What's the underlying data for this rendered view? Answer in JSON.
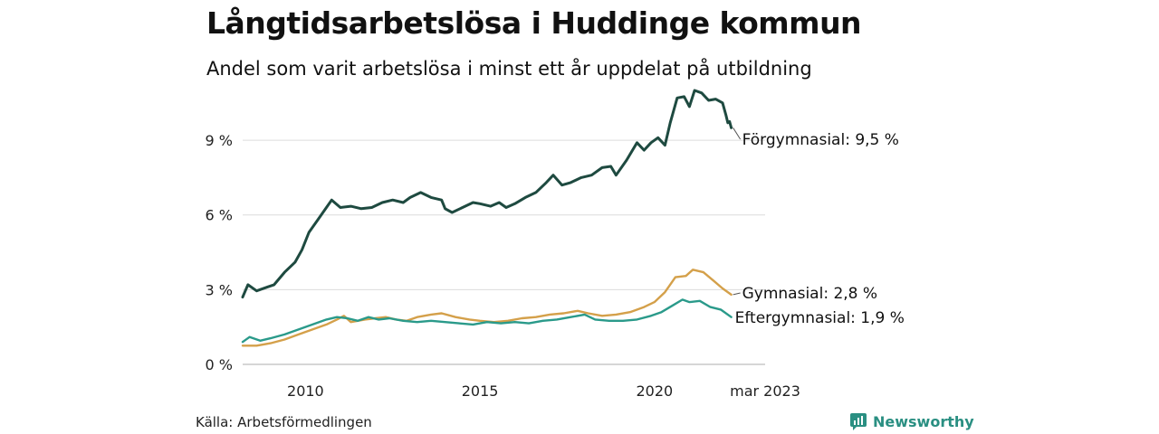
{
  "title": "Långtidsarbetslösa i Huddinge kommun",
  "subtitle": "Andel som varit arbetslösa i minst ett år uppdelat på utbildning",
  "source": "Källa: Arbetsförmedlingen",
  "brand": "Newsworthy",
  "chart_data": {
    "type": "line",
    "title": "Långtidsarbetslösa i Huddinge kommun",
    "subtitle": "Andel som varit arbetslösa i minst ett år uppdelat på utbildning",
    "xlabel": "",
    "ylabel": "",
    "xlim": [
      2008.2,
      2023.17
    ],
    "ylim": [
      0,
      11
    ],
    "y_ticks": [
      0,
      3,
      6,
      9
    ],
    "y_tick_labels": [
      "0 %",
      "3 %",
      "6 %",
      "9 %"
    ],
    "x_ticks": [
      2010,
      2015,
      2020,
      2023.17
    ],
    "x_tick_labels": [
      "2010",
      "2015",
      "2020",
      "mar 2023"
    ],
    "grid": true,
    "legend": "end-labels",
    "series": [
      {
        "name": "Förgymnasial",
        "end_label": "Förgymnasial: 9,5 %",
        "color": "#1e4a40",
        "points": [
          [
            2008.2,
            2.7
          ],
          [
            2008.35,
            3.2
          ],
          [
            2008.6,
            2.95
          ],
          [
            2008.9,
            3.1
          ],
          [
            2009.1,
            3.2
          ],
          [
            2009.4,
            3.7
          ],
          [
            2009.7,
            4.1
          ],
          [
            2009.9,
            4.6
          ],
          [
            2010.1,
            5.3
          ],
          [
            2010.35,
            5.8
          ],
          [
            2010.6,
            6.3
          ],
          [
            2010.75,
            6.6
          ],
          [
            2011.0,
            6.3
          ],
          [
            2011.3,
            6.35
          ],
          [
            2011.6,
            6.25
          ],
          [
            2011.9,
            6.3
          ],
          [
            2012.2,
            6.5
          ],
          [
            2012.5,
            6.6
          ],
          [
            2012.8,
            6.5
          ],
          [
            2013.0,
            6.7
          ],
          [
            2013.3,
            6.9
          ],
          [
            2013.6,
            6.7
          ],
          [
            2013.9,
            6.6
          ],
          [
            2014.0,
            6.25
          ],
          [
            2014.2,
            6.1
          ],
          [
            2014.5,
            6.3
          ],
          [
            2014.8,
            6.5
          ],
          [
            2015.0,
            6.45
          ],
          [
            2015.3,
            6.35
          ],
          [
            2015.55,
            6.5
          ],
          [
            2015.75,
            6.3
          ],
          [
            2016.0,
            6.45
          ],
          [
            2016.3,
            6.7
          ],
          [
            2016.6,
            6.9
          ],
          [
            2016.9,
            7.3
          ],
          [
            2017.1,
            7.6
          ],
          [
            2017.35,
            7.2
          ],
          [
            2017.6,
            7.3
          ],
          [
            2017.9,
            7.5
          ],
          [
            2018.2,
            7.6
          ],
          [
            2018.5,
            7.9
          ],
          [
            2018.75,
            7.95
          ],
          [
            2018.9,
            7.6
          ],
          [
            2019.2,
            8.2
          ],
          [
            2019.5,
            8.9
          ],
          [
            2019.7,
            8.6
          ],
          [
            2019.9,
            8.9
          ],
          [
            2020.1,
            9.1
          ],
          [
            2020.3,
            8.8
          ],
          [
            2020.45,
            9.7
          ],
          [
            2020.65,
            10.7
          ],
          [
            2020.85,
            10.75
          ],
          [
            2021.0,
            10.35
          ],
          [
            2021.15,
            11.0
          ],
          [
            2021.35,
            10.9
          ],
          [
            2021.55,
            10.6
          ],
          [
            2021.75,
            10.65
          ],
          [
            2021.95,
            10.5
          ],
          [
            2022.05,
            10.0
          ],
          [
            2022.1,
            9.7
          ],
          [
            2022.15,
            9.75
          ],
          [
            2022.2,
            9.5
          ]
        ]
      },
      {
        "name": "Gymnasial",
        "end_label": "Gymnasial: 2,8 %",
        "color": "#d4a04a",
        "points": [
          [
            2008.2,
            0.75
          ],
          [
            2008.6,
            0.75
          ],
          [
            2009.0,
            0.85
          ],
          [
            2009.4,
            1.0
          ],
          [
            2009.8,
            1.2
          ],
          [
            2010.2,
            1.4
          ],
          [
            2010.6,
            1.6
          ],
          [
            2010.9,
            1.8
          ],
          [
            2011.1,
            1.95
          ],
          [
            2011.3,
            1.7
          ],
          [
            2011.7,
            1.8
          ],
          [
            2012.0,
            1.85
          ],
          [
            2012.3,
            1.9
          ],
          [
            2012.6,
            1.8
          ],
          [
            2012.9,
            1.75
          ],
          [
            2013.2,
            1.9
          ],
          [
            2013.6,
            2.0
          ],
          [
            2013.9,
            2.05
          ],
          [
            2014.3,
            1.9
          ],
          [
            2014.7,
            1.8
          ],
          [
            2015.0,
            1.75
          ],
          [
            2015.4,
            1.7
          ],
          [
            2015.8,
            1.75
          ],
          [
            2016.2,
            1.85
          ],
          [
            2016.6,
            1.9
          ],
          [
            2017.0,
            2.0
          ],
          [
            2017.4,
            2.05
          ],
          [
            2017.8,
            2.15
          ],
          [
            2018.1,
            2.05
          ],
          [
            2018.5,
            1.95
          ],
          [
            2018.9,
            2.0
          ],
          [
            2019.3,
            2.1
          ],
          [
            2019.7,
            2.3
          ],
          [
            2020.0,
            2.5
          ],
          [
            2020.3,
            2.9
          ],
          [
            2020.6,
            3.5
          ],
          [
            2020.9,
            3.55
          ],
          [
            2021.1,
            3.8
          ],
          [
            2021.4,
            3.7
          ],
          [
            2021.7,
            3.35
          ],
          [
            2021.95,
            3.05
          ],
          [
            2022.2,
            2.8
          ]
        ]
      },
      {
        "name": "Eftergymnasial",
        "end_label": "Eftergymnasial: 1,9 %",
        "color": "#2a9a8a",
        "points": [
          [
            2008.2,
            0.9
          ],
          [
            2008.4,
            1.1
          ],
          [
            2008.7,
            0.95
          ],
          [
            2009.0,
            1.05
          ],
          [
            2009.4,
            1.2
          ],
          [
            2009.8,
            1.4
          ],
          [
            2010.2,
            1.6
          ],
          [
            2010.6,
            1.8
          ],
          [
            2010.9,
            1.9
          ],
          [
            2011.2,
            1.85
          ],
          [
            2011.5,
            1.75
          ],
          [
            2011.8,
            1.9
          ],
          [
            2012.1,
            1.8
          ],
          [
            2012.4,
            1.85
          ],
          [
            2012.8,
            1.75
          ],
          [
            2013.2,
            1.7
          ],
          [
            2013.6,
            1.75
          ],
          [
            2014.0,
            1.7
          ],
          [
            2014.4,
            1.65
          ],
          [
            2014.8,
            1.6
          ],
          [
            2015.2,
            1.7
          ],
          [
            2015.6,
            1.65
          ],
          [
            2016.0,
            1.7
          ],
          [
            2016.4,
            1.65
          ],
          [
            2016.8,
            1.75
          ],
          [
            2017.2,
            1.8
          ],
          [
            2017.6,
            1.9
          ],
          [
            2018.0,
            2.0
          ],
          [
            2018.3,
            1.8
          ],
          [
            2018.7,
            1.75
          ],
          [
            2019.1,
            1.75
          ],
          [
            2019.5,
            1.8
          ],
          [
            2019.9,
            1.95
          ],
          [
            2020.2,
            2.1
          ],
          [
            2020.5,
            2.35
          ],
          [
            2020.8,
            2.6
          ],
          [
            2021.0,
            2.5
          ],
          [
            2021.3,
            2.55
          ],
          [
            2021.6,
            2.3
          ],
          [
            2021.9,
            2.2
          ],
          [
            2022.2,
            1.9
          ]
        ]
      }
    ]
  }
}
